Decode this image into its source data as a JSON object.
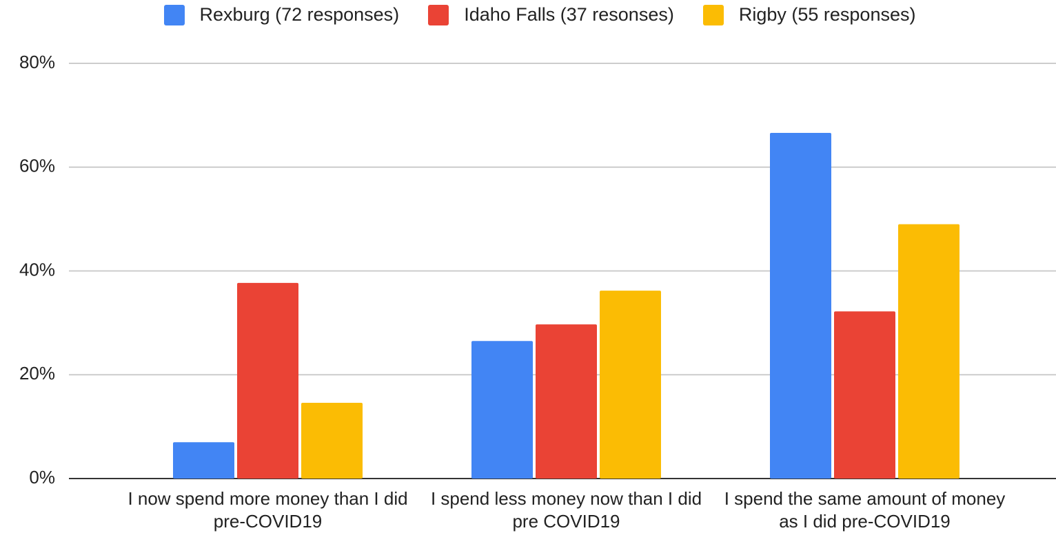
{
  "chart_data": {
    "type": "bar",
    "categories": [
      "I now spend more money than I did pre-COVID19",
      "I spend less money now than I did pre COVID19",
      "I spend the same amount of money as I did pre-COVID19"
    ],
    "series": [
      {
        "name": "Rexburg (72 responses)",
        "color": "#4285f4",
        "values": [
          7.0,
          26.5,
          66.6
        ]
      },
      {
        "name": "Idaho Falls (37 resonses)",
        "color": "#ea4335",
        "values": [
          37.7,
          29.7,
          32.2
        ]
      },
      {
        "name": "Rigby (55 responses)",
        "color": "#fbbc04",
        "values": [
          14.6,
          36.2,
          49.0
        ]
      }
    ],
    "ylim": [
      0,
      80
    ],
    "yticks": [
      {
        "value": 0,
        "label": "0%"
      },
      {
        "value": 20,
        "label": "20%"
      },
      {
        "value": 40,
        "label": "40%"
      },
      {
        "value": 60,
        "label": "60%"
      },
      {
        "value": 80,
        "label": "80%"
      }
    ],
    "grid": true,
    "legend": "top"
  }
}
